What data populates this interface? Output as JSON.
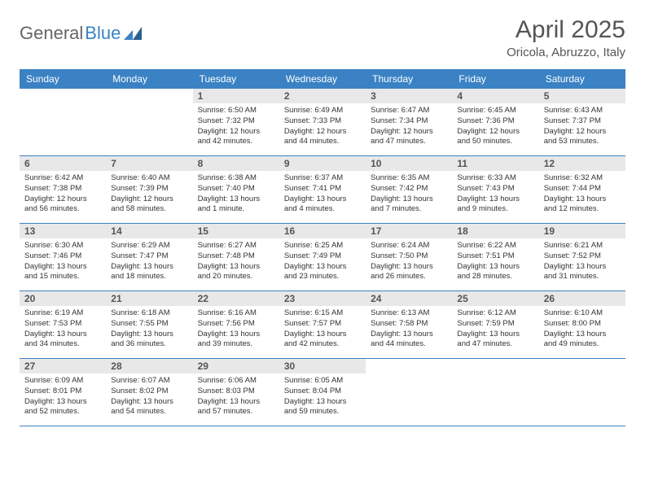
{
  "brand": {
    "part1": "General",
    "part2": "Blue"
  },
  "title": "April 2025",
  "location": "Oricola, Abruzzo, Italy",
  "colors": {
    "header_bg": "#3b82c4",
    "header_text": "#ffffff",
    "daynum_bg": "#e8e8e8",
    "daynum_text": "#555555",
    "border": "#3b82c4",
    "title_color": "#555555",
    "logo_gray": "#666666",
    "logo_blue": "#3b82c4",
    "body_text": "#333333"
  },
  "day_headers": [
    "Sunday",
    "Monday",
    "Tuesday",
    "Wednesday",
    "Thursday",
    "Friday",
    "Saturday"
  ],
  "weeks": [
    [
      null,
      null,
      {
        "n": "1",
        "sr": "Sunrise: 6:50 AM",
        "ss": "Sunset: 7:32 PM",
        "dl": "Daylight: 12 hours and 42 minutes."
      },
      {
        "n": "2",
        "sr": "Sunrise: 6:49 AM",
        "ss": "Sunset: 7:33 PM",
        "dl": "Daylight: 12 hours and 44 minutes."
      },
      {
        "n": "3",
        "sr": "Sunrise: 6:47 AM",
        "ss": "Sunset: 7:34 PM",
        "dl": "Daylight: 12 hours and 47 minutes."
      },
      {
        "n": "4",
        "sr": "Sunrise: 6:45 AM",
        "ss": "Sunset: 7:36 PM",
        "dl": "Daylight: 12 hours and 50 minutes."
      },
      {
        "n": "5",
        "sr": "Sunrise: 6:43 AM",
        "ss": "Sunset: 7:37 PM",
        "dl": "Daylight: 12 hours and 53 minutes."
      }
    ],
    [
      {
        "n": "6",
        "sr": "Sunrise: 6:42 AM",
        "ss": "Sunset: 7:38 PM",
        "dl": "Daylight: 12 hours and 56 minutes."
      },
      {
        "n": "7",
        "sr": "Sunrise: 6:40 AM",
        "ss": "Sunset: 7:39 PM",
        "dl": "Daylight: 12 hours and 58 minutes."
      },
      {
        "n": "8",
        "sr": "Sunrise: 6:38 AM",
        "ss": "Sunset: 7:40 PM",
        "dl": "Daylight: 13 hours and 1 minute."
      },
      {
        "n": "9",
        "sr": "Sunrise: 6:37 AM",
        "ss": "Sunset: 7:41 PM",
        "dl": "Daylight: 13 hours and 4 minutes."
      },
      {
        "n": "10",
        "sr": "Sunrise: 6:35 AM",
        "ss": "Sunset: 7:42 PM",
        "dl": "Daylight: 13 hours and 7 minutes."
      },
      {
        "n": "11",
        "sr": "Sunrise: 6:33 AM",
        "ss": "Sunset: 7:43 PM",
        "dl": "Daylight: 13 hours and 9 minutes."
      },
      {
        "n": "12",
        "sr": "Sunrise: 6:32 AM",
        "ss": "Sunset: 7:44 PM",
        "dl": "Daylight: 13 hours and 12 minutes."
      }
    ],
    [
      {
        "n": "13",
        "sr": "Sunrise: 6:30 AM",
        "ss": "Sunset: 7:46 PM",
        "dl": "Daylight: 13 hours and 15 minutes."
      },
      {
        "n": "14",
        "sr": "Sunrise: 6:29 AM",
        "ss": "Sunset: 7:47 PM",
        "dl": "Daylight: 13 hours and 18 minutes."
      },
      {
        "n": "15",
        "sr": "Sunrise: 6:27 AM",
        "ss": "Sunset: 7:48 PM",
        "dl": "Daylight: 13 hours and 20 minutes."
      },
      {
        "n": "16",
        "sr": "Sunrise: 6:25 AM",
        "ss": "Sunset: 7:49 PM",
        "dl": "Daylight: 13 hours and 23 minutes."
      },
      {
        "n": "17",
        "sr": "Sunrise: 6:24 AM",
        "ss": "Sunset: 7:50 PM",
        "dl": "Daylight: 13 hours and 26 minutes."
      },
      {
        "n": "18",
        "sr": "Sunrise: 6:22 AM",
        "ss": "Sunset: 7:51 PM",
        "dl": "Daylight: 13 hours and 28 minutes."
      },
      {
        "n": "19",
        "sr": "Sunrise: 6:21 AM",
        "ss": "Sunset: 7:52 PM",
        "dl": "Daylight: 13 hours and 31 minutes."
      }
    ],
    [
      {
        "n": "20",
        "sr": "Sunrise: 6:19 AM",
        "ss": "Sunset: 7:53 PM",
        "dl": "Daylight: 13 hours and 34 minutes."
      },
      {
        "n": "21",
        "sr": "Sunrise: 6:18 AM",
        "ss": "Sunset: 7:55 PM",
        "dl": "Daylight: 13 hours and 36 minutes."
      },
      {
        "n": "22",
        "sr": "Sunrise: 6:16 AM",
        "ss": "Sunset: 7:56 PM",
        "dl": "Daylight: 13 hours and 39 minutes."
      },
      {
        "n": "23",
        "sr": "Sunrise: 6:15 AM",
        "ss": "Sunset: 7:57 PM",
        "dl": "Daylight: 13 hours and 42 minutes."
      },
      {
        "n": "24",
        "sr": "Sunrise: 6:13 AM",
        "ss": "Sunset: 7:58 PM",
        "dl": "Daylight: 13 hours and 44 minutes."
      },
      {
        "n": "25",
        "sr": "Sunrise: 6:12 AM",
        "ss": "Sunset: 7:59 PM",
        "dl": "Daylight: 13 hours and 47 minutes."
      },
      {
        "n": "26",
        "sr": "Sunrise: 6:10 AM",
        "ss": "Sunset: 8:00 PM",
        "dl": "Daylight: 13 hours and 49 minutes."
      }
    ],
    [
      {
        "n": "27",
        "sr": "Sunrise: 6:09 AM",
        "ss": "Sunset: 8:01 PM",
        "dl": "Daylight: 13 hours and 52 minutes."
      },
      {
        "n": "28",
        "sr": "Sunrise: 6:07 AM",
        "ss": "Sunset: 8:02 PM",
        "dl": "Daylight: 13 hours and 54 minutes."
      },
      {
        "n": "29",
        "sr": "Sunrise: 6:06 AM",
        "ss": "Sunset: 8:03 PM",
        "dl": "Daylight: 13 hours and 57 minutes."
      },
      {
        "n": "30",
        "sr": "Sunrise: 6:05 AM",
        "ss": "Sunset: 8:04 PM",
        "dl": "Daylight: 13 hours and 59 minutes."
      },
      null,
      null,
      null
    ]
  ]
}
